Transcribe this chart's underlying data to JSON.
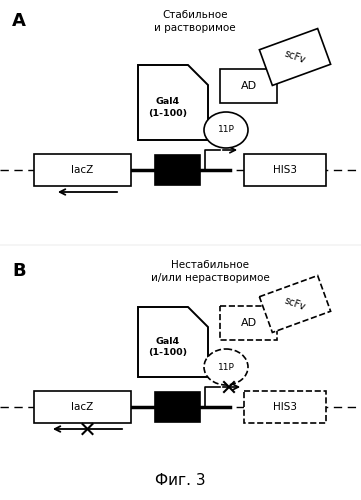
{
  "title": "Фиг. 3",
  "panel_A_label": "A",
  "panel_B_label": "B",
  "text_stable": "Стабильное\nи растворимое",
  "text_unstable": "Нестабильное\nи/или нерастворимое",
  "lacZ": "lacZ",
  "HIS3": "HIS3",
  "Gal4": "Gal4\n(1-100)",
  "AD": "AD",
  "11P": "11P",
  "scFv": "scFv"
}
